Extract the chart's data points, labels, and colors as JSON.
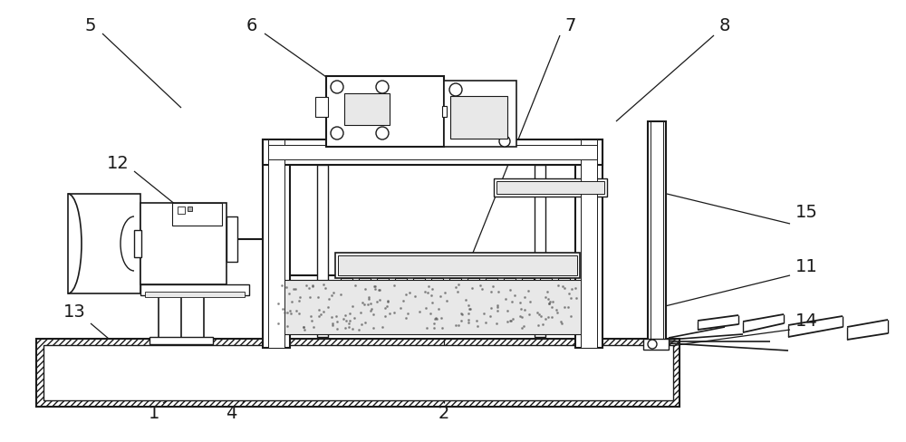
{
  "bg_color": "#ffffff",
  "line_color": "#1a1a1a",
  "gray_light": "#e8e8e8",
  "gray_med": "#b0b0b0",
  "gray_dark": "#606060"
}
